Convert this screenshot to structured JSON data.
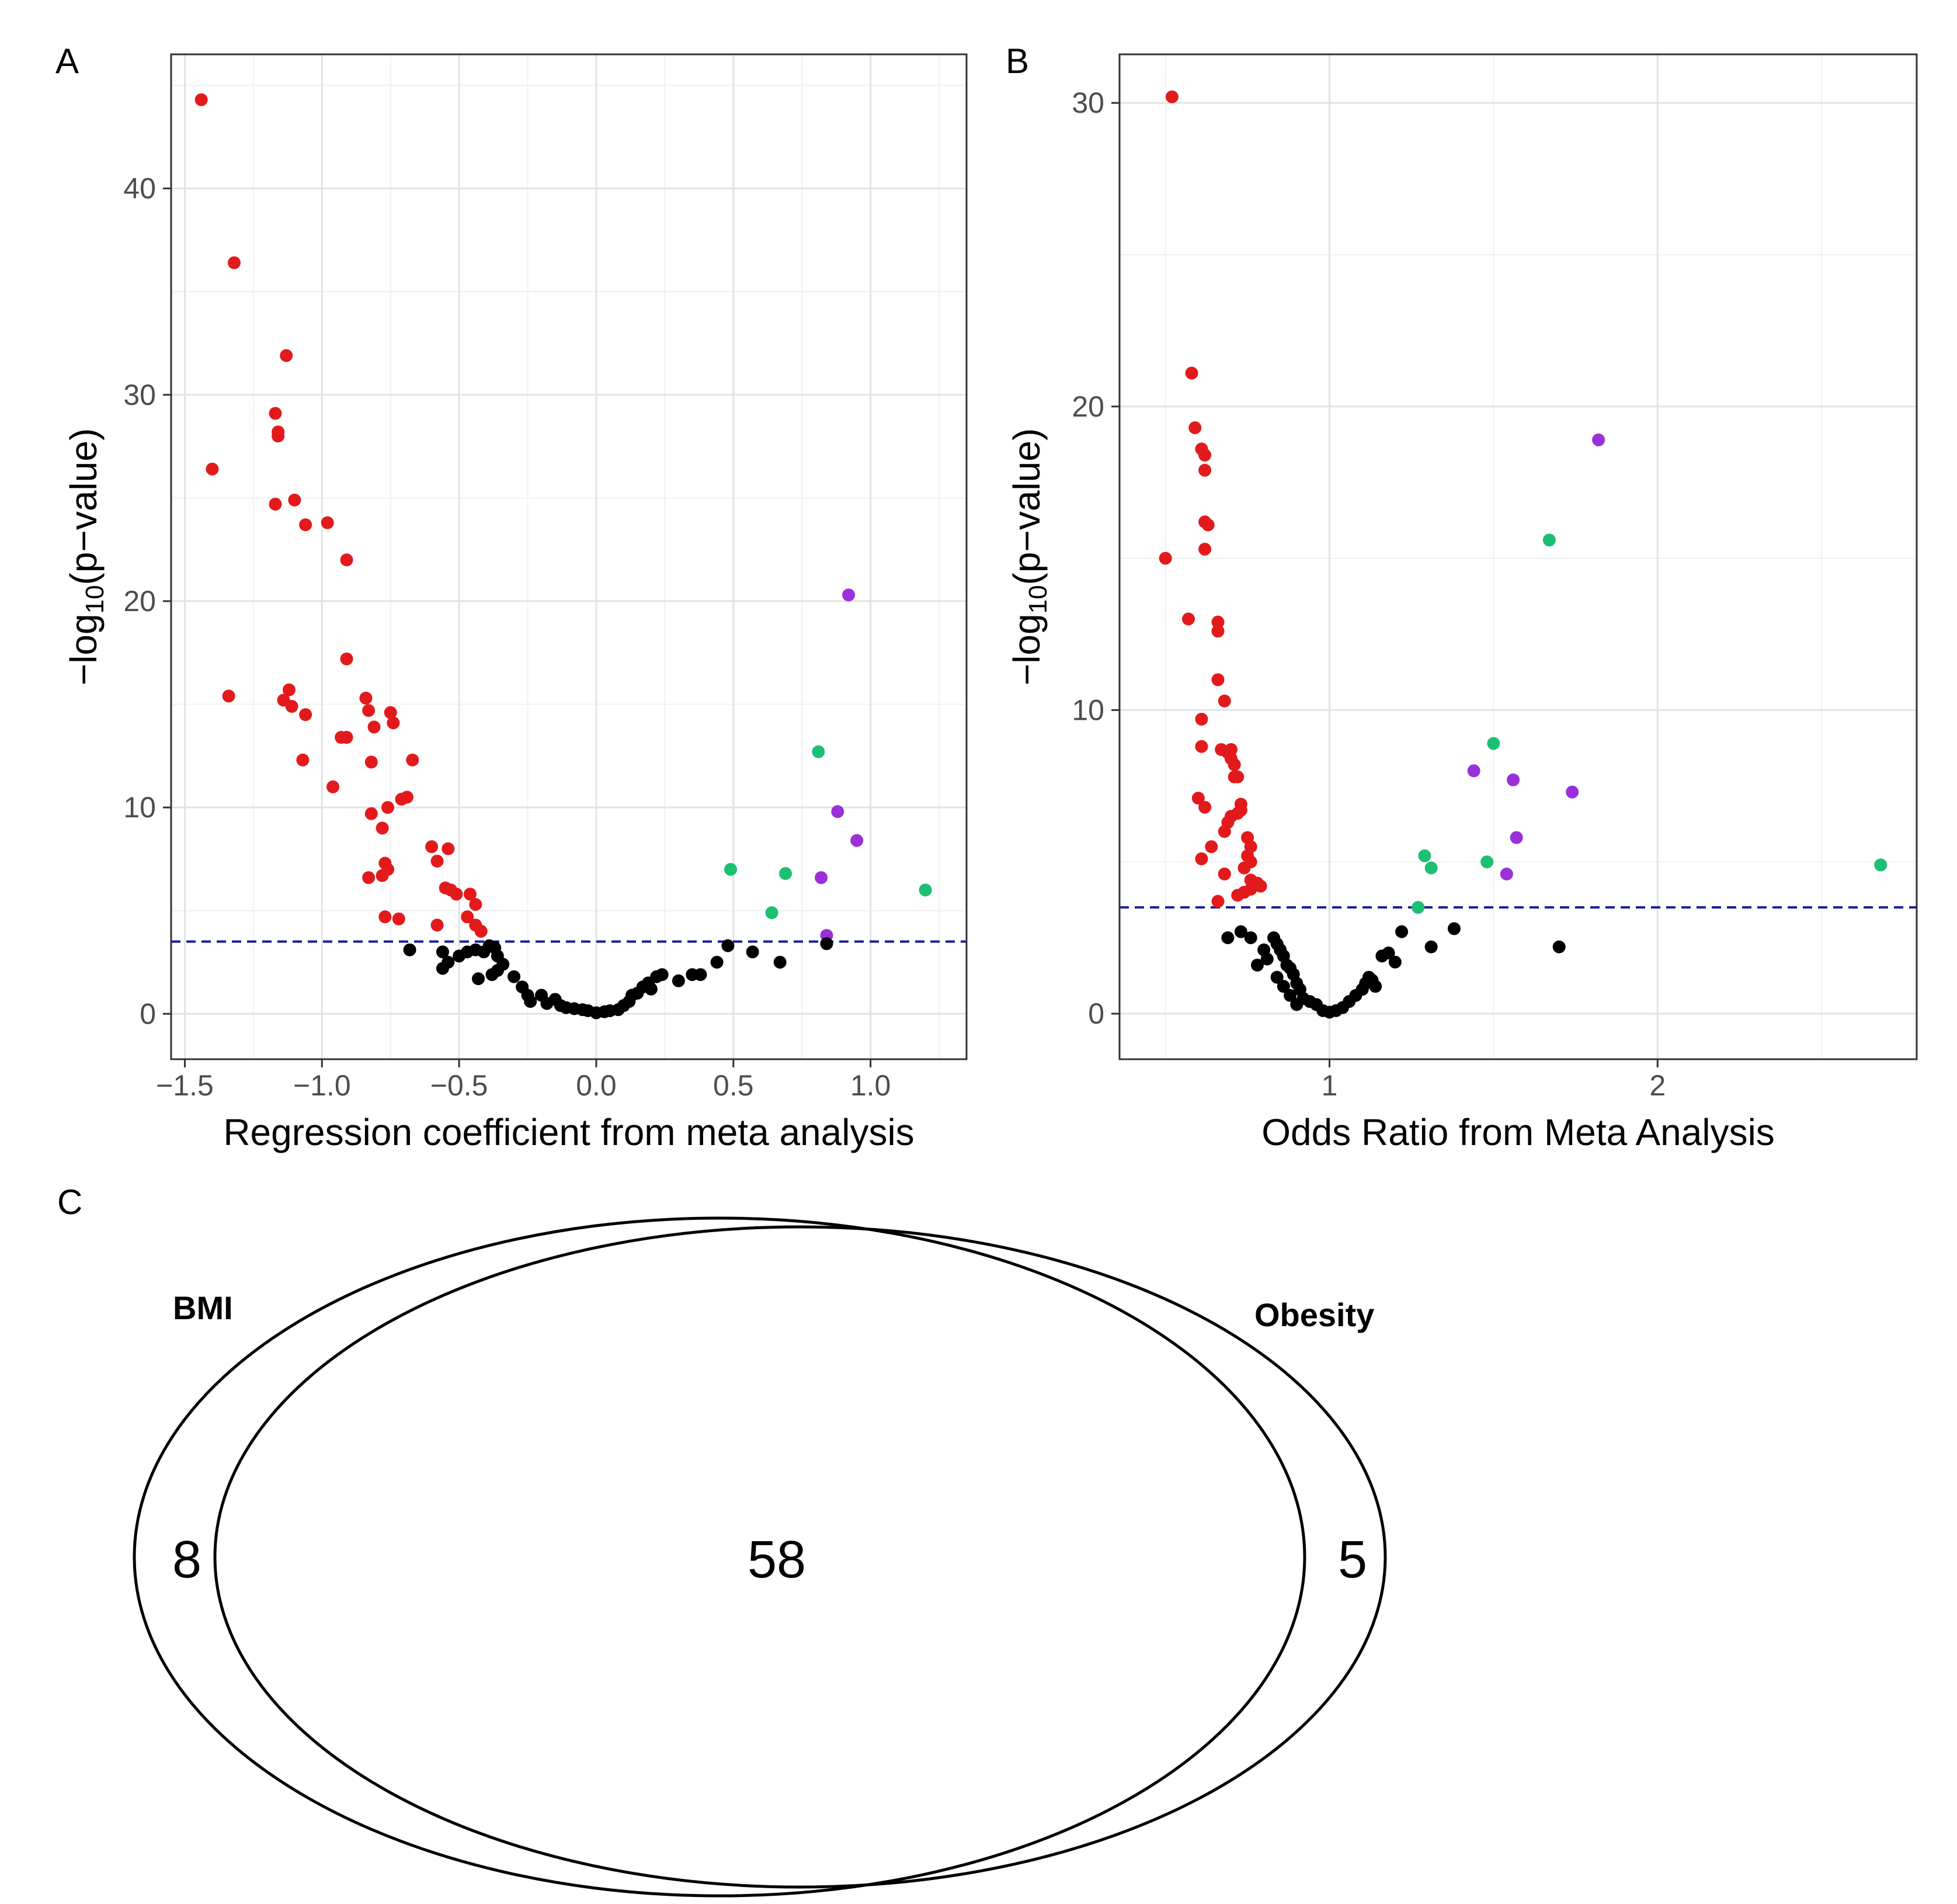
{
  "colors": {
    "sig_negative": "#e31a1c",
    "sig_positive_green": "#1dbf73",
    "sig_positive_purple": "#9b30d9",
    "nonsig": "#000000",
    "threshold": "#1b1b9e"
  },
  "panels": {
    "a": {
      "letter": "A"
    },
    "b": {
      "letter": "B"
    },
    "c": {
      "letter": "C"
    }
  },
  "chart_data": [
    {
      "id": "A",
      "type": "scatter",
      "xlabel": "Regression coefficient from meta analysis",
      "ylabel_prefix": "−log",
      "ylabel_sub": "10",
      "ylabel_suffix": "(p−value)",
      "xlim": [
        -1.55,
        1.35
      ],
      "ylim": [
        -2.2,
        46.5
      ],
      "xticks": [
        {
          "value": -1.5,
          "label": "−1.5"
        },
        {
          "value": -1.0,
          "label": "−1.0"
        },
        {
          "value": -0.5,
          "label": "−0.5"
        },
        {
          "value": 0.0,
          "label": "0.0"
        },
        {
          "value": 0.5,
          "label": "0.5"
        },
        {
          "value": 1.0,
          "label": "1.0"
        }
      ],
      "yticks": [
        {
          "value": 0,
          "label": "0"
        },
        {
          "value": 10,
          "label": "10"
        },
        {
          "value": 20,
          "label": "20"
        },
        {
          "value": 30,
          "label": "30"
        },
        {
          "value": 40,
          "label": "40"
        }
      ],
      "threshold": 3.5,
      "series": [
        {
          "name": "negative significant",
          "color_key": "sig_negative",
          "points": [
            [
              -1.44,
              44.3
            ],
            [
              -1.32,
              36.4
            ],
            [
              -1.4,
              26.4
            ],
            [
              -1.34,
              15.4
            ],
            [
              -1.13,
              31.9
            ],
            [
              -1.17,
              29.1
            ],
            [
              -1.16,
              28.2
            ],
            [
              -1.16,
              28.0
            ],
            [
              -1.17,
              24.7
            ],
            [
              -1.1,
              24.9
            ],
            [
              -1.06,
              23.7
            ],
            [
              -0.98,
              23.8
            ],
            [
              -0.91,
              22.0
            ],
            [
              -0.91,
              17.2
            ],
            [
              -1.12,
              15.7
            ],
            [
              -1.14,
              15.2
            ],
            [
              -1.11,
              14.9
            ],
            [
              -1.06,
              14.5
            ],
            [
              -1.07,
              12.3
            ],
            [
              -0.96,
              11.0
            ],
            [
              -0.93,
              13.4
            ],
            [
              -0.91,
              13.4
            ],
            [
              -0.84,
              15.3
            ],
            [
              -0.83,
              14.7
            ],
            [
              -0.81,
              13.9
            ],
            [
              -0.75,
              14.6
            ],
            [
              -0.74,
              14.1
            ],
            [
              -0.67,
              12.3
            ],
            [
              -0.82,
              12.2
            ],
            [
              -0.76,
              10.0
            ],
            [
              -0.71,
              10.4
            ],
            [
              -0.69,
              10.5
            ],
            [
              -0.82,
              9.7
            ],
            [
              -0.78,
              9.0
            ],
            [
              -0.77,
              7.3
            ],
            [
              -0.76,
              7.0
            ],
            [
              -0.78,
              6.7
            ],
            [
              -0.83,
              6.6
            ],
            [
              -0.6,
              8.1
            ],
            [
              -0.54,
              8.0
            ],
            [
              -0.58,
              7.4
            ],
            [
              -0.55,
              6.1
            ],
            [
              -0.53,
              6.0
            ],
            [
              -0.51,
              5.8
            ],
            [
              -0.46,
              5.8
            ],
            [
              -0.44,
              5.3
            ],
            [
              -0.47,
              4.7
            ],
            [
              -0.44,
              4.3
            ],
            [
              -0.42,
              4.0
            ],
            [
              -0.58,
              4.3
            ],
            [
              -0.72,
              4.6
            ],
            [
              -0.77,
              4.7
            ]
          ]
        },
        {
          "name": "positive significant (green)",
          "color_key": "sig_positive_green",
          "points": [
            [
              0.81,
              12.7
            ],
            [
              0.49,
              7.0
            ],
            [
              0.69,
              6.8
            ],
            [
              0.64,
              4.9
            ],
            [
              1.2,
              6.0
            ]
          ]
        },
        {
          "name": "positive significant (purple)",
          "color_key": "sig_positive_purple",
          "points": [
            [
              0.92,
              20.3
            ],
            [
              0.88,
              9.8
            ],
            [
              0.95,
              8.4
            ],
            [
              0.82,
              6.6
            ],
            [
              0.84,
              3.8
            ]
          ]
        },
        {
          "name": "not significant",
          "color_key": "nonsig",
          "points": [
            [
              -0.68,
              3.1
            ],
            [
              -0.56,
              3.0
            ],
            [
              -0.56,
              2.2
            ],
            [
              -0.54,
              2.5
            ],
            [
              -0.5,
              2.8
            ],
            [
              -0.47,
              3.0
            ],
            [
              -0.44,
              3.1
            ],
            [
              -0.41,
              3.0
            ],
            [
              -0.39,
              3.3
            ],
            [
              -0.37,
              3.2
            ],
            [
              -0.36,
              2.8
            ],
            [
              -0.34,
              2.4
            ],
            [
              -0.43,
              1.7
            ],
            [
              -0.38,
              1.9
            ],
            [
              -0.36,
              2.1
            ],
            [
              -0.3,
              1.8
            ],
            [
              -0.27,
              1.3
            ],
            [
              -0.25,
              0.9
            ],
            [
              -0.24,
              0.6
            ],
            [
              -0.2,
              0.9
            ],
            [
              -0.18,
              0.5
            ],
            [
              -0.15,
              0.7
            ],
            [
              -0.13,
              0.4
            ],
            [
              -0.11,
              0.3
            ],
            [
              -0.08,
              0.25
            ],
            [
              -0.05,
              0.2
            ],
            [
              -0.03,
              0.15
            ],
            [
              0.0,
              0.05
            ],
            [
              0.03,
              0.1
            ],
            [
              0.05,
              0.15
            ],
            [
              0.08,
              0.2
            ],
            [
              0.1,
              0.4
            ],
            [
              0.12,
              0.6
            ],
            [
              0.13,
              0.9
            ],
            [
              0.15,
              1.0
            ],
            [
              0.17,
              1.3
            ],
            [
              0.19,
              1.5
            ],
            [
              0.2,
              1.2
            ],
            [
              0.22,
              1.8
            ],
            [
              0.24,
              1.9
            ],
            [
              0.3,
              1.6
            ],
            [
              0.35,
              1.9
            ],
            [
              0.38,
              1.9
            ],
            [
              0.44,
              2.5
            ],
            [
              0.48,
              3.3
            ],
            [
              0.57,
              3.0
            ],
            [
              0.67,
              2.5
            ],
            [
              0.84,
              3.4
            ]
          ]
        }
      ]
    },
    {
      "id": "B",
      "type": "scatter",
      "xlabel": "Odds Ratio from Meta Analysis",
      "ylabel_prefix": "−log",
      "ylabel_sub": "10",
      "ylabel_suffix": "(p−value)",
      "xlim": [
        0.36,
        2.79
      ],
      "ylim": [
        -1.5,
        31.6
      ],
      "xticks": [
        {
          "value": 1,
          "label": "1"
        },
        {
          "value": 2,
          "label": "2"
        }
      ],
      "yticks": [
        {
          "value": 0,
          "label": "0"
        },
        {
          "value": 10,
          "label": "10"
        },
        {
          "value": 20,
          "label": "20"
        },
        {
          "value": 30,
          "label": "30"
        }
      ],
      "threshold": 3.5,
      "series": [
        {
          "name": "negative significant",
          "color_key": "sig_negative",
          "points": [
            [
              0.52,
              30.2
            ],
            [
              0.58,
              21.1
            ],
            [
              0.5,
              15.0
            ],
            [
              0.59,
              19.3
            ],
            [
              0.61,
              18.6
            ],
            [
              0.62,
              18.4
            ],
            [
              0.62,
              17.9
            ],
            [
              0.62,
              16.2
            ],
            [
              0.63,
              16.1
            ],
            [
              0.62,
              15.3
            ],
            [
              0.57,
              13.0
            ],
            [
              0.66,
              12.9
            ],
            [
              0.66,
              12.6
            ],
            [
              0.66,
              11.0
            ],
            [
              0.68,
              10.3
            ],
            [
              0.61,
              9.7
            ],
            [
              0.61,
              8.8
            ],
            [
              0.67,
              8.7
            ],
            [
              0.69,
              8.6
            ],
            [
              0.7,
              8.7
            ],
            [
              0.7,
              8.4
            ],
            [
              0.71,
              8.2
            ],
            [
              0.71,
              7.8
            ],
            [
              0.72,
              7.8
            ],
            [
              0.73,
              6.9
            ],
            [
              0.73,
              6.7
            ],
            [
              0.72,
              6.6
            ],
            [
              0.7,
              6.5
            ],
            [
              0.69,
              6.3
            ],
            [
              0.68,
              6.0
            ],
            [
              0.6,
              7.1
            ],
            [
              0.62,
              6.8
            ],
            [
              0.61,
              5.1
            ],
            [
              0.64,
              5.5
            ],
            [
              0.75,
              5.8
            ],
            [
              0.76,
              5.5
            ],
            [
              0.75,
              5.2
            ],
            [
              0.76,
              5.0
            ],
            [
              0.74,
              4.8
            ],
            [
              0.76,
              4.4
            ],
            [
              0.78,
              4.3
            ],
            [
              0.79,
              4.2
            ],
            [
              0.76,
              4.1
            ],
            [
              0.72,
              3.9
            ],
            [
              0.74,
              4.0
            ],
            [
              0.66,
              3.7
            ],
            [
              0.68,
              4.6
            ]
          ]
        },
        {
          "name": "positive significant (green)",
          "color_key": "sig_positive_green",
          "points": [
            [
              1.67,
              15.6
            ],
            [
              1.5,
              8.9
            ],
            [
              1.29,
              5.2
            ],
            [
              1.31,
              4.8
            ],
            [
              1.48,
              5.0
            ],
            [
              1.27,
              3.5
            ],
            [
              2.68,
              4.9
            ]
          ]
        },
        {
          "name": "positive significant (purple)",
          "color_key": "sig_positive_purple",
          "points": [
            [
              1.82,
              18.9
            ],
            [
              1.44,
              8.0
            ],
            [
              1.56,
              7.7
            ],
            [
              1.74,
              7.3
            ],
            [
              1.57,
              5.8
            ],
            [
              1.54,
              4.6
            ]
          ]
        },
        {
          "name": "not significant",
          "color_key": "nonsig",
          "points": [
            [
              0.69,
              2.5
            ],
            [
              0.73,
              2.7
            ],
            [
              0.76,
              2.5
            ],
            [
              0.8,
              2.1
            ],
            [
              0.83,
              2.5
            ],
            [
              0.84,
              2.3
            ],
            [
              0.85,
              2.1
            ],
            [
              0.86,
              1.9
            ],
            [
              0.87,
              1.6
            ],
            [
              0.88,
              1.5
            ],
            [
              0.89,
              1.3
            ],
            [
              0.9,
              1.0
            ],
            [
              0.91,
              0.8
            ],
            [
              0.92,
              0.5
            ],
            [
              0.94,
              0.4
            ],
            [
              0.96,
              0.3
            ],
            [
              0.98,
              0.1
            ],
            [
              1.0,
              0.05
            ],
            [
              1.02,
              0.1
            ],
            [
              1.04,
              0.2
            ],
            [
              1.06,
              0.4
            ],
            [
              1.08,
              0.6
            ],
            [
              1.1,
              0.8
            ],
            [
              1.11,
              1.0
            ],
            [
              1.12,
              1.2
            ],
            [
              1.13,
              1.1
            ],
            [
              1.14,
              0.9
            ],
            [
              1.16,
              1.9
            ],
            [
              1.18,
              2.0
            ],
            [
              1.2,
              1.7
            ],
            [
              1.22,
              2.7
            ],
            [
              1.31,
              2.2
            ],
            [
              1.38,
              2.8
            ],
            [
              1.7,
              2.2
            ],
            [
              0.78,
              1.6
            ],
            [
              0.81,
              1.8
            ],
            [
              0.84,
              1.2
            ],
            [
              0.86,
              0.9
            ],
            [
              0.88,
              0.6
            ],
            [
              0.9,
              0.3
            ]
          ]
        }
      ]
    },
    {
      "id": "C",
      "type": "venn",
      "sets": [
        {
          "name": "BMI",
          "only": 8
        },
        {
          "name": "Obesity",
          "only": 5
        }
      ],
      "overlap": 58
    }
  ]
}
